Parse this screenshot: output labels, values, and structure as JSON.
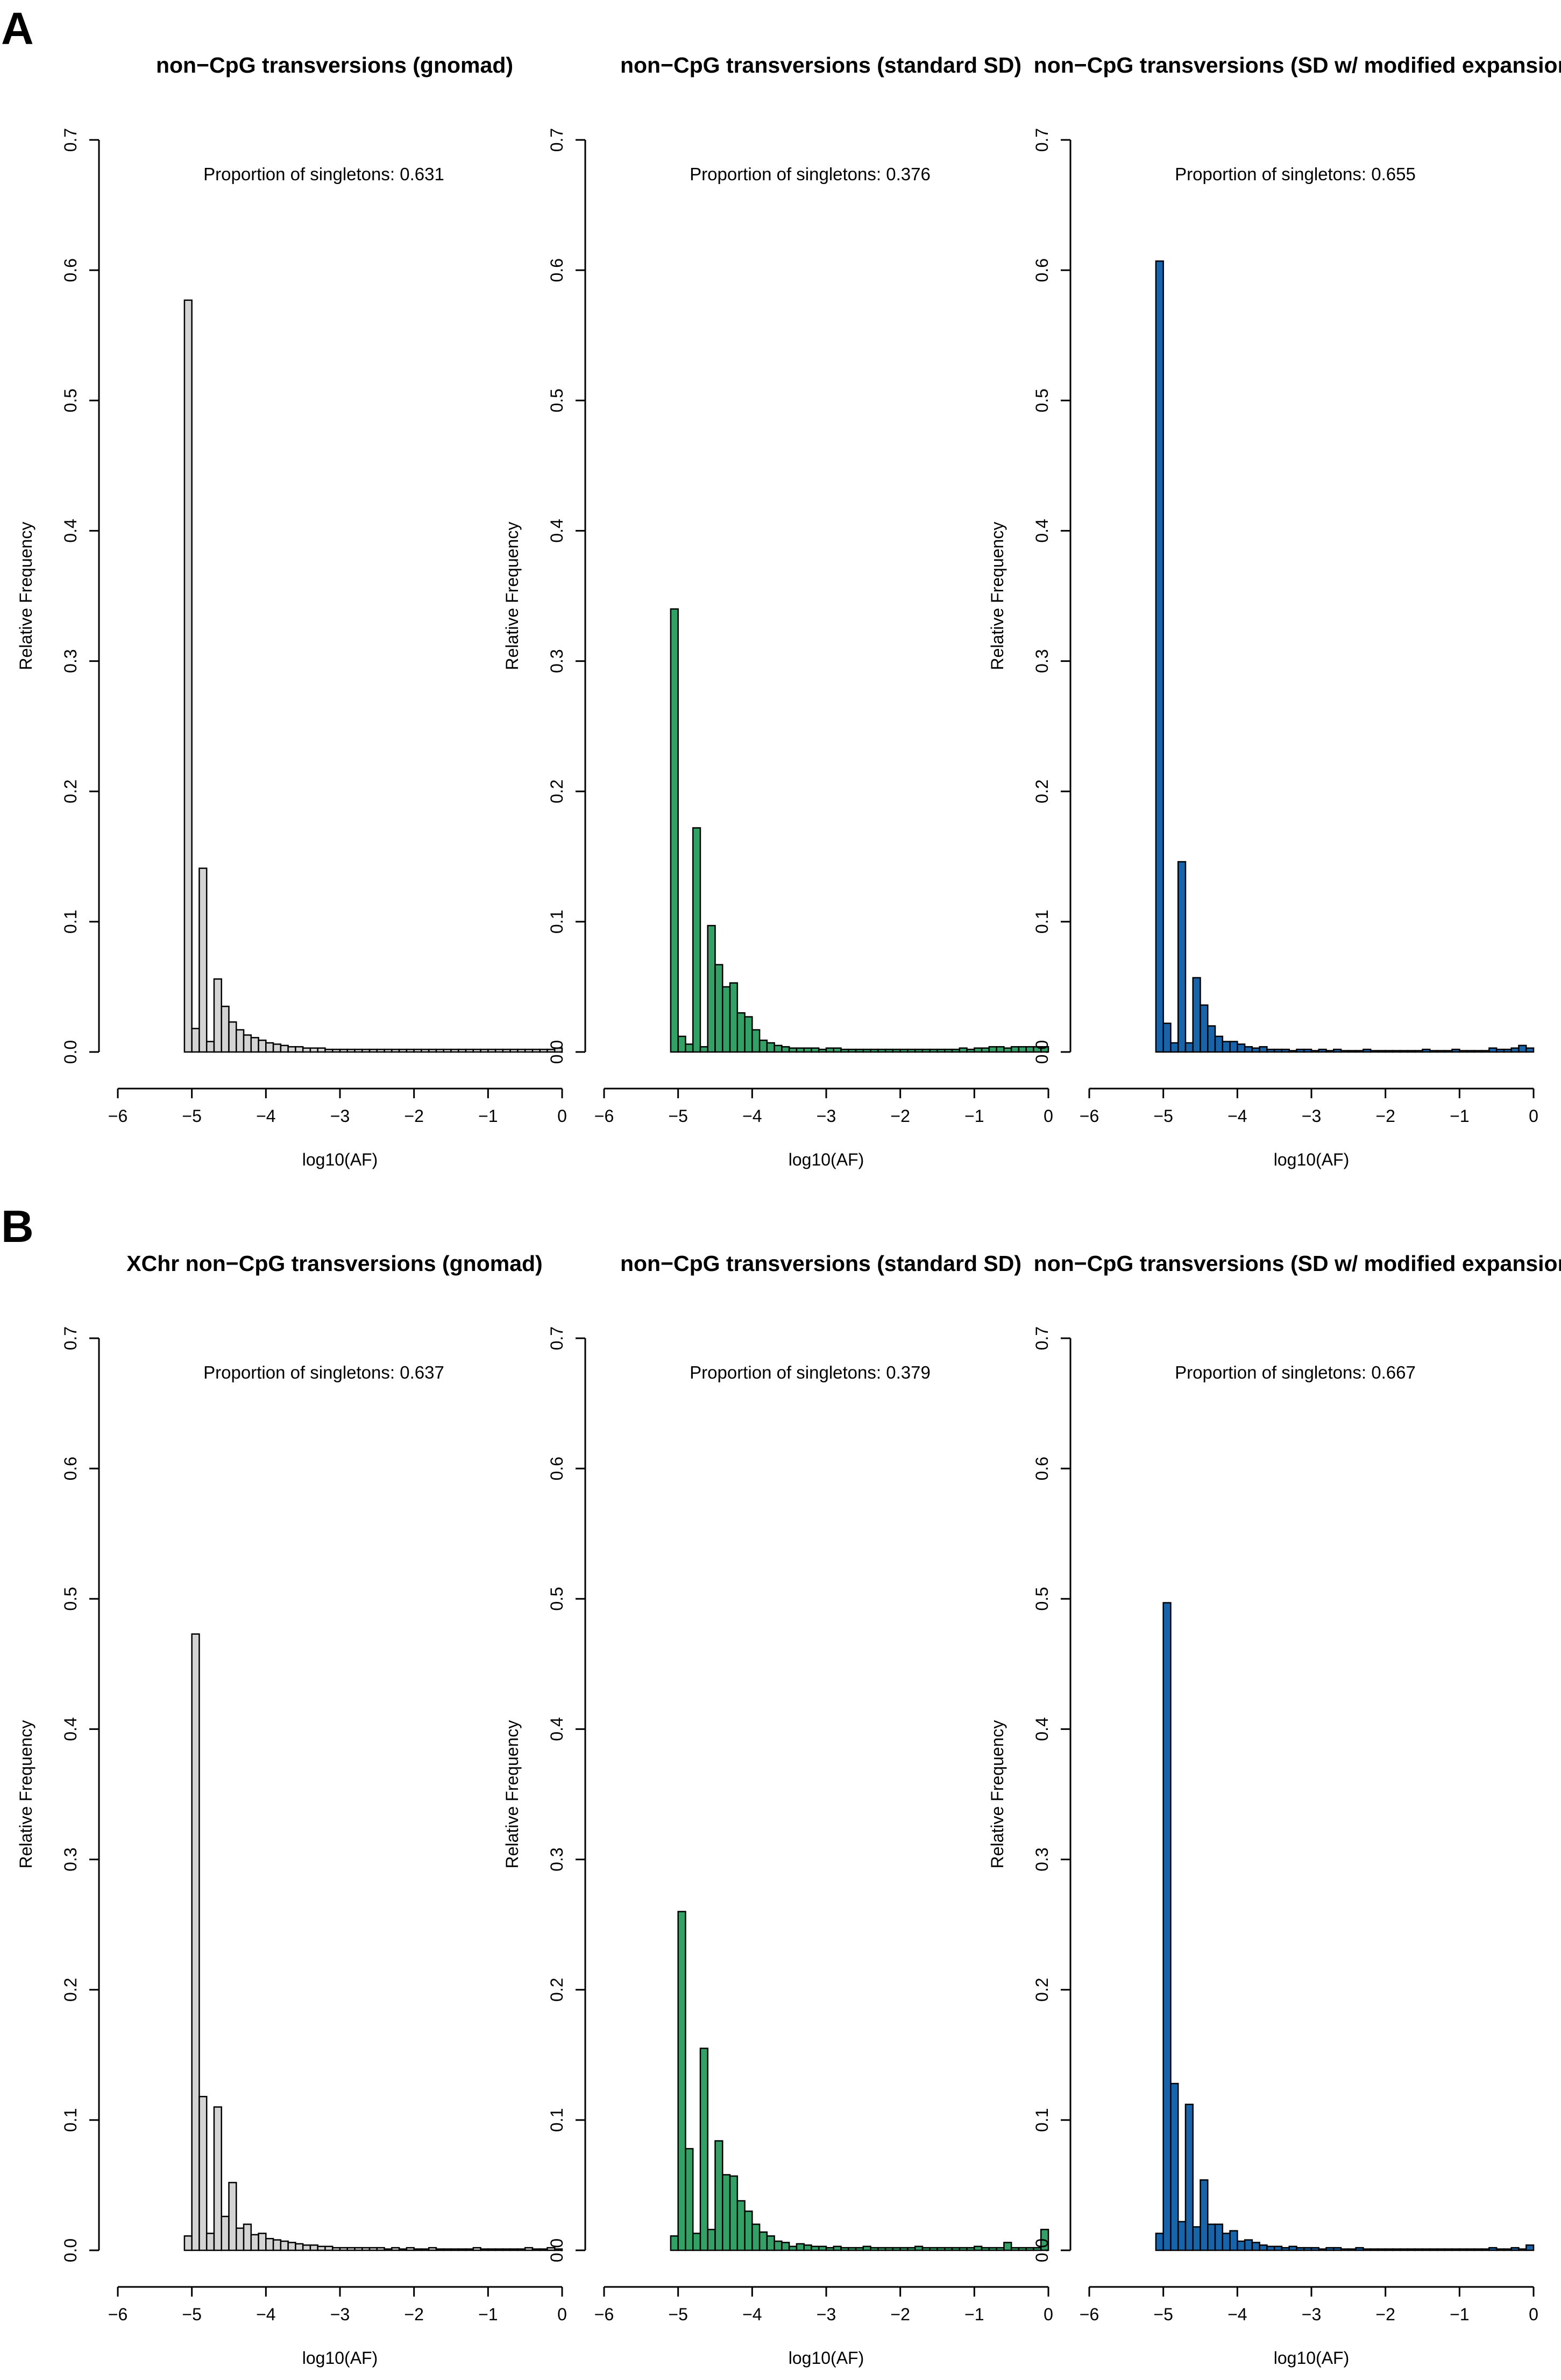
{
  "panels": [
    {
      "label": "A"
    },
    {
      "label": "B"
    }
  ],
  "chart_data": [
    {
      "type": "bar",
      "panel": "A",
      "title": "non−CpG transversions (gnomad)",
      "annotation": "Proportion of singletons:  0.631",
      "xlabel": "log10(AF)",
      "ylabel": "Relative Frequency",
      "xlim": [
        -6,
        0
      ],
      "ylim": [
        0,
        0.7
      ],
      "xticks": [
        "−6",
        "−5",
        "−4",
        "−3",
        "−2",
        "−1",
        "0"
      ],
      "yticks": [
        "0.0",
        "0.1",
        "0.2",
        "0.3",
        "0.4",
        "0.5",
        "0.6",
        "0.7"
      ],
      "fill_color": "#d3d3d3",
      "bin_start": -5.1,
      "bin_width": 0.1,
      "values": [
        0.577,
        0.018,
        0.141,
        0.008,
        0.056,
        0.035,
        0.023,
        0.017,
        0.013,
        0.011,
        0.009,
        0.007,
        0.006,
        0.005,
        0.004,
        0.004,
        0.003,
        0.003,
        0.003,
        0.002,
        0.002,
        0.002,
        0.002,
        0.002,
        0.002,
        0.002,
        0.002,
        0.002,
        0.002,
        0.002,
        0.002,
        0.002,
        0.002,
        0.002,
        0.002,
        0.002,
        0.002,
        0.002,
        0.002,
        0.002,
        0.002,
        0.002,
        0.002,
        0.002,
        0.002,
        0.002,
        0.002,
        0.002,
        0.002,
        0.002,
        0.003
      ]
    },
    {
      "type": "bar",
      "panel": "A",
      "title": "non−CpG transversions (standard SD)",
      "annotation": "Proportion of singletons:  0.376",
      "xlabel": "log10(AF)",
      "ylabel": "Relative Frequency",
      "xlim": [
        -6,
        0
      ],
      "ylim": [
        0,
        0.7
      ],
      "xticks": [
        "−6",
        "−5",
        "−4",
        "−3",
        "−2",
        "−1",
        "0"
      ],
      "yticks": [
        "0.0",
        "0.1",
        "0.2",
        "0.3",
        "0.4",
        "0.5",
        "0.6",
        "0.7"
      ],
      "fill_color": "#33a065",
      "bin_start": -5.1,
      "bin_width": 0.1,
      "values": [
        0.34,
        0.012,
        0.006,
        0.172,
        0.004,
        0.097,
        0.067,
        0.05,
        0.053,
        0.03,
        0.027,
        0.017,
        0.009,
        0.007,
        0.005,
        0.004,
        0.003,
        0.003,
        0.003,
        0.003,
        0.002,
        0.003,
        0.003,
        0.002,
        0.002,
        0.002,
        0.002,
        0.002,
        0.002,
        0.002,
        0.002,
        0.002,
        0.002,
        0.002,
        0.002,
        0.002,
        0.002,
        0.002,
        0.002,
        0.003,
        0.002,
        0.003,
        0.003,
        0.004,
        0.004,
        0.003,
        0.004,
        0.004,
        0.004,
        0.004,
        0.004
      ]
    },
    {
      "type": "bar",
      "panel": "A",
      "title": "non−CpG transversions (SD w/ modified expansion)",
      "annotation": "Proportion of singletons:  0.655",
      "xlabel": "log10(AF)",
      "ylabel": "Relative Frequency",
      "xlim": [
        -6,
        0
      ],
      "ylim": [
        0,
        0.7
      ],
      "xticks": [
        "−6",
        "−5",
        "−4",
        "−3",
        "−2",
        "−1",
        "0"
      ],
      "yticks": [
        "0.0",
        "0.1",
        "0.2",
        "0.3",
        "0.4",
        "0.5",
        "0.6",
        "0.7"
      ],
      "fill_color": "#1764ab",
      "bin_start": -5.1,
      "bin_width": 0.1,
      "values": [
        0.607,
        0.022,
        0.007,
        0.146,
        0.007,
        0.057,
        0.036,
        0.02,
        0.012,
        0.008,
        0.008,
        0.006,
        0.004,
        0.003,
        0.004,
        0.002,
        0.002,
        0.002,
        0.001,
        0.002,
        0.002,
        0.001,
        0.002,
        0.001,
        0.002,
        0.001,
        0.001,
        0.001,
        0.002,
        0.001,
        0.001,
        0.001,
        0.001,
        0.001,
        0.001,
        0.001,
        0.002,
        0.001,
        0.001,
        0.001,
        0.002,
        0.001,
        0.001,
        0.001,
        0.001,
        0.003,
        0.002,
        0.002,
        0.003,
        0.005,
        0.003
      ]
    },
    {
      "type": "bar",
      "panel": "B",
      "title": "XChr non−CpG transversions (gnomad)",
      "annotation": "Proportion of singletons:  0.637",
      "xlabel": "log10(AF)",
      "ylabel": "Relative Frequency",
      "xlim": [
        -6,
        0
      ],
      "ylim": [
        0,
        0.7
      ],
      "xticks": [
        "−6",
        "−5",
        "−4",
        "−3",
        "−2",
        "−1",
        "0"
      ],
      "yticks": [
        "0.0",
        "0.1",
        "0.2",
        "0.3",
        "0.4",
        "0.5",
        "0.6",
        "0.7"
      ],
      "fill_color": "#d3d3d3",
      "bin_start": -5.1,
      "bin_width": 0.1,
      "values": [
        0.011,
        0.473,
        0.118,
        0.013,
        0.11,
        0.026,
        0.052,
        0.017,
        0.02,
        0.012,
        0.013,
        0.009,
        0.008,
        0.007,
        0.006,
        0.005,
        0.004,
        0.004,
        0.003,
        0.003,
        0.002,
        0.002,
        0.002,
        0.002,
        0.002,
        0.002,
        0.002,
        0.001,
        0.002,
        0.001,
        0.002,
        0.001,
        0.001,
        0.002,
        0.001,
        0.001,
        0.001,
        0.001,
        0.001,
        0.002,
        0.001,
        0.001,
        0.001,
        0.001,
        0.001,
        0.001,
        0.002,
        0.001,
        0.001,
        0.002,
        0.001
      ]
    },
    {
      "type": "bar",
      "panel": "B",
      "title": "non−CpG transversions (standard SD)",
      "annotation": "Proportion of singletons:  0.379",
      "xlabel": "log10(AF)",
      "ylabel": "Relative Frequency",
      "xlim": [
        -6,
        0
      ],
      "ylim": [
        0,
        0.7
      ],
      "xticks": [
        "−6",
        "−5",
        "−4",
        "−3",
        "−2",
        "−1",
        "0"
      ],
      "yticks": [
        "0.0",
        "0.1",
        "0.2",
        "0.3",
        "0.4",
        "0.5",
        "0.6",
        "0.7"
      ],
      "fill_color": "#33a065",
      "bin_start": -5.1,
      "bin_width": 0.1,
      "values": [
        0.011,
        0.26,
        0.078,
        0.013,
        0.155,
        0.016,
        0.084,
        0.058,
        0.057,
        0.038,
        0.03,
        0.02,
        0.014,
        0.011,
        0.007,
        0.006,
        0.003,
        0.005,
        0.004,
        0.003,
        0.003,
        0.002,
        0.003,
        0.002,
        0.002,
        0.002,
        0.003,
        0.002,
        0.002,
        0.002,
        0.002,
        0.002,
        0.002,
        0.003,
        0.002,
        0.002,
        0.002,
        0.002,
        0.002,
        0.002,
        0.002,
        0.003,
        0.002,
        0.002,
        0.002,
        0.006,
        0.002,
        0.002,
        0.002,
        0.002,
        0.016
      ]
    },
    {
      "type": "bar",
      "panel": "B",
      "title": "non−CpG transversions (SD w/ modified expansion)",
      "annotation": "Proportion of singletons:  0.667",
      "xlabel": "log10(AF)",
      "ylabel": "Relative Frequency",
      "xlim": [
        -6,
        0
      ],
      "ylim": [
        0,
        0.7
      ],
      "xticks": [
        "−6",
        "−5",
        "−4",
        "−3",
        "−2",
        "−1",
        "0"
      ],
      "yticks": [
        "0.0",
        "0.1",
        "0.2",
        "0.3",
        "0.4",
        "0.5",
        "0.6",
        "0.7"
      ],
      "fill_color": "#1764ab",
      "bin_start": -5.1,
      "bin_width": 0.1,
      "values": [
        0.013,
        0.497,
        0.128,
        0.022,
        0.112,
        0.018,
        0.054,
        0.02,
        0.02,
        0.013,
        0.015,
        0.007,
        0.008,
        0.006,
        0.004,
        0.003,
        0.003,
        0.002,
        0.003,
        0.002,
        0.002,
        0.002,
        0.001,
        0.002,
        0.002,
        0.001,
        0.001,
        0.002,
        0.001,
        0.001,
        0.001,
        0.001,
        0.001,
        0.001,
        0.001,
        0.001,
        0.001,
        0.001,
        0.001,
        0.001,
        0.001,
        0.001,
        0.001,
        0.001,
        0.001,
        0.002,
        0.001,
        0.001,
        0.002,
        0.001,
        0.004
      ]
    }
  ]
}
